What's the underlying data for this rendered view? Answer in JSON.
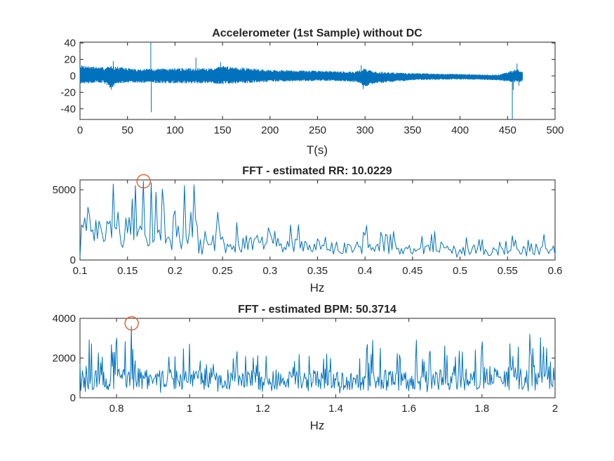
{
  "colors": {
    "line": "#0072BD",
    "marker": "#D95319",
    "axis": "#262626",
    "background": "#ffffff"
  },
  "chart_data": [
    {
      "type": "line",
      "title": "Accelerometer (1st Sample) without DC",
      "xlabel": "T(s)",
      "ylabel": "",
      "xlim": [
        0,
        500
      ],
      "ylim": [
        -53,
        41
      ],
      "xticks": [
        0,
        50,
        100,
        150,
        200,
        250,
        300,
        350,
        400,
        450,
        500
      ],
      "xtick_labels": [
        "0",
        "50",
        "100",
        "150",
        "200",
        "250",
        "300",
        "350",
        "400",
        "450",
        "500"
      ],
      "yticks": [
        40,
        20,
        0,
        -20,
        -40
      ],
      "ytick_labels": [
        "40",
        "20",
        "0",
        "-20",
        "-40"
      ],
      "grid": false,
      "signal": {
        "x_start": 0,
        "x_end": 466,
        "envelope_x": [
          0,
          25,
          32,
          38,
          60,
          100,
          140,
          150,
          200,
          250,
          290,
          300,
          310,
          350,
          400,
          440,
          460,
          466
        ],
        "envelope_y": [
          11,
          9,
          14,
          10,
          8,
          9,
          9,
          11,
          7,
          6,
          6,
          11,
          7,
          4,
          3,
          3,
          8,
          5
        ],
        "center_y": [
          2,
          1,
          -2,
          1,
          0,
          0,
          0,
          1,
          0,
          0,
          -1,
          -2,
          -2,
          -1,
          -1,
          -2,
          0,
          -1
        ]
      },
      "spikes": [
        {
          "x": 33,
          "y": -17
        },
        {
          "x": 35,
          "y": 18
        },
        {
          "x": 74.5,
          "y": 41
        },
        {
          "x": 75,
          "y": -44
        },
        {
          "x": 122,
          "y": 22
        },
        {
          "x": 148,
          "y": 17
        },
        {
          "x": 296,
          "y": 13
        },
        {
          "x": 298,
          "y": -16
        },
        {
          "x": 455,
          "y": -53
        },
        {
          "x": 456,
          "y": -17
        },
        {
          "x": 460,
          "y": 15
        },
        {
          "x": 462,
          "y": -12
        }
      ]
    },
    {
      "type": "line",
      "title": "FFT - estimated RR: 10.0229",
      "xlabel": "Hz",
      "ylabel": "",
      "xlim": [
        0.1,
        0.6
      ],
      "ylim": [
        0,
        5700
      ],
      "xticks": [
        0.1,
        0.15,
        0.2,
        0.25,
        0.3,
        0.35,
        0.4,
        0.45,
        0.5,
        0.55,
        0.6
      ],
      "xtick_labels": [
        "0.1",
        "0.15",
        "0.2",
        "0.25",
        "0.3",
        "0.35",
        "0.4",
        "0.45",
        "0.5",
        "0.55",
        "0.6"
      ],
      "yticks": [
        5000,
        0
      ],
      "ytick_labels": [
        "5000",
        "0"
      ],
      "grid": false,
      "signal": {
        "envelope_x": [
          0.1,
          0.12,
          0.15,
          0.18,
          0.2,
          0.25,
          0.3,
          0.35,
          0.4,
          0.45,
          0.5,
          0.55,
          0.6
        ],
        "envelope_y": [
          2400,
          2600,
          3200,
          3000,
          2400,
          1900,
          1700,
          1500,
          1300,
          1200,
          1100,
          1100,
          1100
        ],
        "spike_prob": 0.12
      },
      "points": [
        {
          "x": 0.1,
          "y": 200
        },
        {
          "x": 0.1025,
          "y": 2500
        },
        {
          "x": 0.105,
          "y": 3000
        },
        {
          "x": 0.135,
          "y": 5400
        },
        {
          "x": 0.159,
          "y": 5300
        },
        {
          "x": 0.167,
          "y": 5600
        },
        {
          "x": 0.175,
          "y": 5500
        },
        {
          "x": 0.21,
          "y": 5300
        },
        {
          "x": 0.22,
          "y": 5350
        },
        {
          "x": 0.6,
          "y": 400
        }
      ],
      "peak_marker": {
        "x": 0.167,
        "y": 5600
      }
    },
    {
      "type": "line",
      "title": "FFT - estimated BPM: 50.3714",
      "xlabel": "Hz",
      "ylabel": "",
      "xlim": [
        0.7,
        2.0
      ],
      "ylim": [
        0,
        4000
      ],
      "xticks": [
        0.8,
        1,
        1.2,
        1.4,
        1.6,
        1.8,
        2
      ],
      "xtick_labels": [
        "0.8",
        "1",
        "1.2",
        "1.4",
        "1.6",
        "1.8",
        "2"
      ],
      "yticks": [
        4000,
        2000,
        0
      ],
      "ytick_labels": [
        "4000",
        "2000",
        "0"
      ],
      "grid": false,
      "signal": {
        "envelope_x": [
          0.7,
          0.8,
          1.0,
          1.2,
          1.4,
          1.6,
          1.8,
          2.0
        ],
        "envelope_y": [
          1500,
          1600,
          1400,
          1300,
          1350,
          1400,
          1500,
          1700
        ],
        "spike_prob": 0.12
      },
      "points": [
        {
          "x": 0.7,
          "y": 1700
        },
        {
          "x": 0.8,
          "y": 3000
        },
        {
          "x": 0.8413,
          "y": 3600
        },
        {
          "x": 1.0,
          "y": 2700
        },
        {
          "x": 1.5,
          "y": 2900
        },
        {
          "x": 1.62,
          "y": 2900
        },
        {
          "x": 1.93,
          "y": 3200
        },
        {
          "x": 2.0,
          "y": 900
        }
      ],
      "peak_marker": {
        "x": 0.8413,
        "y": 3750
      }
    }
  ]
}
